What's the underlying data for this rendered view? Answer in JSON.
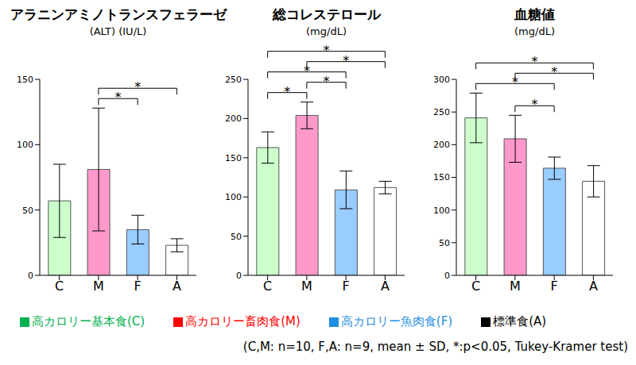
{
  "chart_data": [
    {
      "type": "bar",
      "title": "アラニンアミノトランスフェラーゼ",
      "subtitle": "(ALT) (IU/L)",
      "categories": [
        "C",
        "M",
        "F",
        "A"
      ],
      "values": [
        57,
        81,
        35,
        23
      ],
      "sd": [
        28,
        47,
        11,
        5
      ],
      "colors": [
        "#ccffcc",
        "#ff99cc",
        "#99ccff",
        "#ffffff"
      ],
      "ylim": [
        0,
        150
      ],
      "yticks": [
        0,
        50,
        100,
        150
      ],
      "significance": [
        {
          "from": "M",
          "to": "F",
          "label": "*"
        },
        {
          "from": "M",
          "to": "A",
          "label": "*"
        }
      ]
    },
    {
      "type": "bar",
      "title": "総コレステロール",
      "subtitle": "(mg/dL)",
      "categories": [
        "C",
        "M",
        "F",
        "A"
      ],
      "values": [
        163,
        204,
        109,
        112
      ],
      "sd": [
        20,
        17,
        24,
        8
      ],
      "colors": [
        "#ccffcc",
        "#ff99cc",
        "#99ccff",
        "#ffffff"
      ],
      "ylim": [
        0,
        250
      ],
      "yticks": [
        0,
        50,
        100,
        150,
        200,
        250
      ],
      "significance": [
        {
          "from": "C",
          "to": "M",
          "label": "*"
        },
        {
          "from": "C",
          "to": "F",
          "label": "*"
        },
        {
          "from": "C",
          "to": "A",
          "label": "*"
        },
        {
          "from": "M",
          "to": "F",
          "label": "*"
        },
        {
          "from": "M",
          "to": "A",
          "label": "*"
        }
      ]
    },
    {
      "type": "bar",
      "title": "血糖値",
      "subtitle": "(mg/dL)",
      "categories": [
        "C",
        "M",
        "F",
        "A"
      ],
      "values": [
        241,
        209,
        164,
        144
      ],
      "sd": [
        38,
        36,
        17,
        24
      ],
      "colors": [
        "#ccffcc",
        "#ff99cc",
        "#99ccff",
        "#ffffff"
      ],
      "ylim": [
        0,
        300
      ],
      "yticks": [
        0,
        50,
        100,
        150,
        200,
        250,
        300
      ],
      "significance": [
        {
          "from": "C",
          "to": "F",
          "label": "*"
        },
        {
          "from": "C",
          "to": "A",
          "label": "*"
        },
        {
          "from": "M",
          "to": "F",
          "label": "*"
        },
        {
          "from": "M",
          "to": "A",
          "label": "*"
        }
      ]
    }
  ],
  "legend_entries": [
    {
      "name": "高カロリー基本食(C)",
      "color": "#00b050"
    },
    {
      "name": "高カロリー畜肉食(M)",
      "color": "#ff0000"
    },
    {
      "name": "高カロリー魚肉食(F)",
      "color": "#1f8fdf"
    },
    {
      "name": "標準食(A)",
      "color": "#000000"
    }
  ],
  "note": "(C,M: n=10, F,A: n=9, mean ± SD, *:p<0.05, Tukey-Kramer test)"
}
